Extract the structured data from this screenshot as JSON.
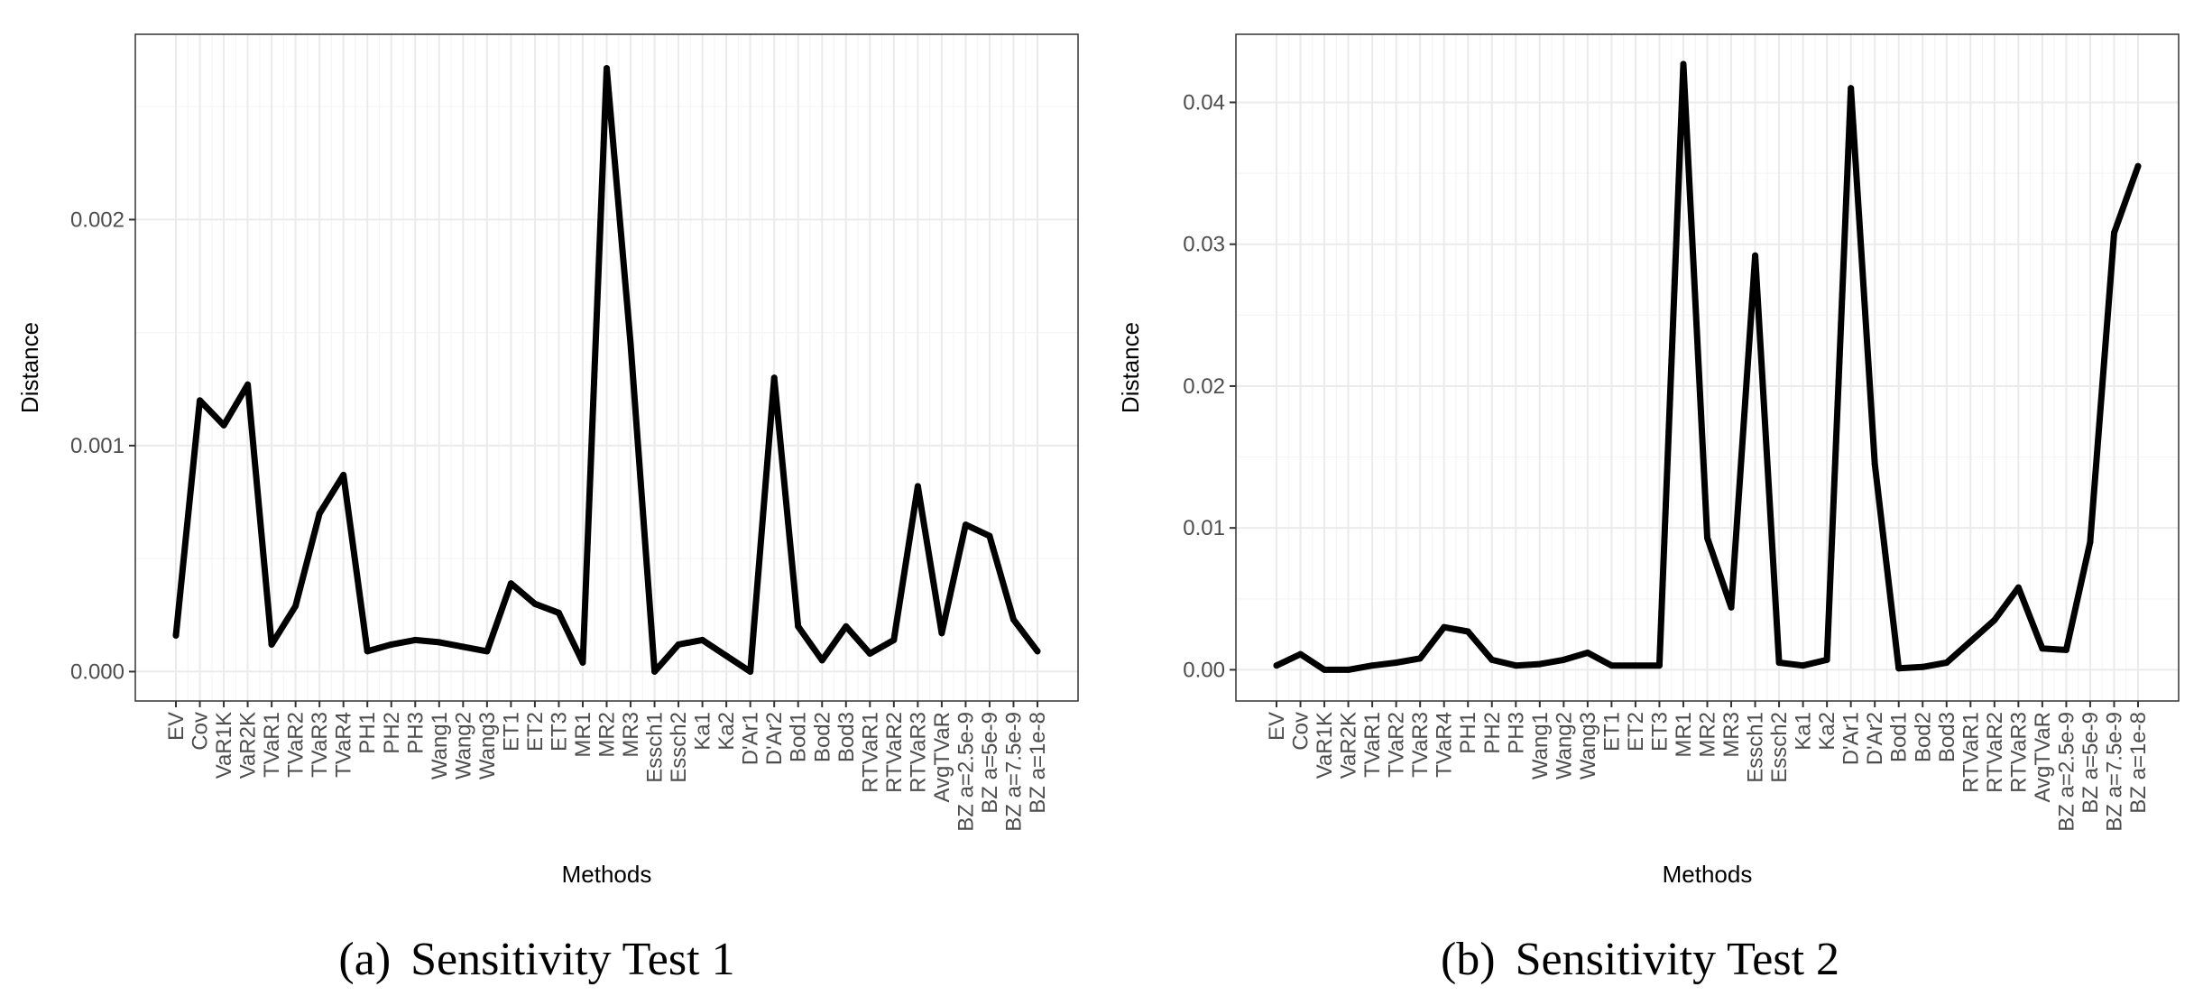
{
  "chart_data": [
    {
      "type": "line",
      "caption_label": "(a)",
      "caption_title": "Sensitivity Test 1",
      "xlabel": "Methods",
      "ylabel": "Distance",
      "ylim": [
        -0.00013,
        0.00282
      ],
      "yticks": [
        0.0,
        0.001,
        0.002
      ],
      "ytick_labels": [
        "0.000",
        "0.001",
        "0.002"
      ],
      "grid": true,
      "categories": [
        "EV",
        "Cov",
        "VaR1K",
        "VaR2K",
        "TVaR1",
        "TVaR2",
        "TVaR3",
        "TVaR4",
        "PH1",
        "PH2",
        "PH3",
        "Wang1",
        "Wang2",
        "Wang3",
        "ET1",
        "ET2",
        "ET3",
        "MR1",
        "MR2",
        "MR3",
        "Essch1",
        "Essch2",
        "Ka1",
        "Ka2",
        "D'Ar1",
        "D'Ar2",
        "Bod1",
        "Bod2",
        "Bod3",
        "RTVaR1",
        "RTVaR2",
        "RTVaR3",
        "AvgTVaR",
        "BZ a=2.5e-9",
        "BZ a=5e-9",
        "BZ a=7.5e-9",
        "BZ a=1e-8"
      ],
      "values": [
        0.00016,
        0.0012,
        0.00109,
        0.00127,
        0.00012,
        0.00029,
        0.0007,
        0.00087,
        9e-05,
        0.00012,
        0.00014,
        0.00013,
        0.00011,
        9e-05,
        0.00039,
        0.0003,
        0.00026,
        4e-05,
        0.00267,
        0.00145,
        0.0,
        0.00012,
        0.00014,
        7e-05,
        0.0,
        0.0013,
        0.0002,
        5e-05,
        0.0002,
        8e-05,
        0.00014,
        0.00082,
        0.00017,
        0.00065,
        0.0006,
        0.00023,
        9e-05
      ]
    },
    {
      "type": "line",
      "caption_label": "(b)",
      "caption_title": "Sensitivity Test 2",
      "xlabel": "Methods",
      "ylabel": "Distance",
      "ylim": [
        -0.0022,
        0.0448
      ],
      "yticks": [
        0.0,
        0.01,
        0.02,
        0.03,
        0.04
      ],
      "ytick_labels": [
        "0.00",
        "0.01",
        "0.02",
        "0.03",
        "0.04"
      ],
      "grid": true,
      "categories": [
        "EV",
        "Cov",
        "VaR1K",
        "VaR2K",
        "TVaR1",
        "TVaR2",
        "TVaR3",
        "TVaR4",
        "PH1",
        "PH2",
        "PH3",
        "Wang1",
        "Wang2",
        "Wang3",
        "ET1",
        "ET2",
        "ET3",
        "MR1",
        "MR2",
        "MR3",
        "Essch1",
        "Essch2",
        "Ka1",
        "Ka2",
        "D'Ar1",
        "D'Ar2",
        "Bod1",
        "Bod2",
        "Bod3",
        "RTVaR1",
        "RTVaR2",
        "RTVaR3",
        "AvgTVaR",
        "BZ a=2.5e-9",
        "BZ a=5e-9",
        "BZ a=7.5e-9",
        "BZ a=1e-8"
      ],
      "values": [
        0.0003,
        0.0011,
        0.0,
        0.0,
        0.0003,
        0.0005,
        0.0008,
        0.003,
        0.0027,
        0.0007,
        0.0003,
        0.0004,
        0.0007,
        0.0012,
        0.0003,
        0.0003,
        0.0003,
        0.0427,
        0.0093,
        0.0044,
        0.0292,
        0.0005,
        0.0003,
        0.0007,
        0.041,
        0.0145,
        0.0001,
        0.0002,
        0.0005,
        0.002,
        0.0035,
        0.0058,
        0.0015,
        0.0014,
        0.009,
        0.0308,
        0.0355
      ]
    }
  ]
}
